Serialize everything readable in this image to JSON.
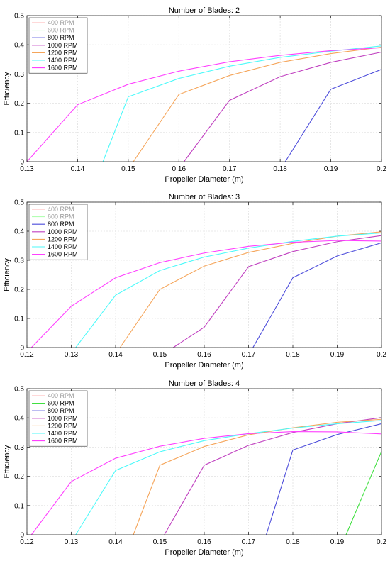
{
  "chart_data": [
    {
      "type": "line",
      "title": "Number of Blades: 2",
      "xlabel": "Propeller Diameter (m)",
      "ylabel": "Efficiency",
      "xlim": [
        0.13,
        0.2
      ],
      "ylim": [
        0,
        0.5
      ],
      "xticks": [
        "0.13",
        "0.14",
        "0.15",
        "0.16",
        "0.17",
        "0.18",
        "0.19",
        "0.2"
      ],
      "yticks": [
        "0",
        "0.1",
        "0.2",
        "0.3",
        "0.4",
        "0.5"
      ],
      "grid": true,
      "legend_position": "top-left",
      "series": [
        {
          "name": "400 RPM",
          "color": "#ffb3b3",
          "dim": true,
          "points": []
        },
        {
          "name": "600 RPM",
          "color": "#b3ffb3",
          "dim": true,
          "points": []
        },
        {
          "name": "800 RPM",
          "color": "#4d4ddb",
          "points": [
            [
              0.181,
              0
            ],
            [
              0.19,
              0.248
            ],
            [
              0.2,
              0.316
            ]
          ]
        },
        {
          "name": "1000 RPM",
          "color": "#c040c0",
          "points": [
            [
              0.161,
              0
            ],
            [
              0.17,
              0.21
            ],
            [
              0.18,
              0.291
            ],
            [
              0.19,
              0.34
            ],
            [
              0.2,
              0.375
            ]
          ]
        },
        {
          "name": "1200 RPM",
          "color": "#f5a55a",
          "points": [
            [
              0.151,
              0
            ],
            [
              0.16,
              0.23
            ],
            [
              0.17,
              0.295
            ],
            [
              0.18,
              0.34
            ],
            [
              0.19,
              0.37
            ],
            [
              0.2,
              0.392
            ]
          ]
        },
        {
          "name": "1400 RPM",
          "color": "#4dfafa",
          "points": [
            [
              0.145,
              0
            ],
            [
              0.15,
              0.222
            ],
            [
              0.16,
              0.285
            ],
            [
              0.17,
              0.327
            ],
            [
              0.18,
              0.357
            ],
            [
              0.19,
              0.378
            ],
            [
              0.2,
              0.396
            ]
          ]
        },
        {
          "name": "1600 RPM",
          "color": "#ff40ff",
          "points": [
            [
              0.13,
              0
            ],
            [
              0.14,
              0.195
            ],
            [
              0.15,
              0.265
            ],
            [
              0.16,
              0.31
            ],
            [
              0.17,
              0.342
            ],
            [
              0.18,
              0.364
            ],
            [
              0.19,
              0.38
            ],
            [
              0.2,
              0.39
            ]
          ]
        }
      ]
    },
    {
      "type": "line",
      "title": "Number of Blades: 3",
      "xlabel": "Propeller Diameter (m)",
      "ylabel": "Efficiency",
      "xlim": [
        0.12,
        0.2
      ],
      "ylim": [
        0,
        0.5
      ],
      "xticks": [
        "0.12",
        "0.13",
        "0.14",
        "0.15",
        "0.16",
        "0.17",
        "0.18",
        "0.19",
        "0.2"
      ],
      "yticks": [
        "0",
        "0.1",
        "0.2",
        "0.3",
        "0.4",
        "0.5"
      ],
      "grid": true,
      "legend_position": "top-left",
      "series": [
        {
          "name": "400 RPM",
          "color": "#ffb3b3",
          "dim": true,
          "points": []
        },
        {
          "name": "600 RPM",
          "color": "#b3ffb3",
          "dim": true,
          "points": []
        },
        {
          "name": "800 RPM",
          "color": "#4d4ddb",
          "points": [
            [
              0.171,
              0
            ],
            [
              0.18,
              0.24
            ],
            [
              0.19,
              0.315
            ],
            [
              0.2,
              0.36
            ]
          ]
        },
        {
          "name": "1000 RPM",
          "color": "#c040c0",
          "points": [
            [
              0.153,
              0
            ],
            [
              0.16,
              0.07
            ],
            [
              0.17,
              0.278
            ],
            [
              0.18,
              0.33
            ],
            [
              0.19,
              0.364
            ],
            [
              0.2,
              0.385
            ]
          ]
        },
        {
          "name": "1200 RPM",
          "color": "#f5a55a",
          "points": [
            [
              0.141,
              0
            ],
            [
              0.15,
              0.2
            ],
            [
              0.16,
              0.28
            ],
            [
              0.17,
              0.327
            ],
            [
              0.18,
              0.358
            ],
            [
              0.19,
              0.383
            ],
            [
              0.2,
              0.398
            ]
          ]
        },
        {
          "name": "1400 RPM",
          "color": "#4dfafa",
          "points": [
            [
              0.131,
              0
            ],
            [
              0.14,
              0.18
            ],
            [
              0.15,
              0.265
            ],
            [
              0.16,
              0.311
            ],
            [
              0.17,
              0.342
            ],
            [
              0.18,
              0.365
            ],
            [
              0.19,
              0.383
            ],
            [
              0.2,
              0.394
            ]
          ]
        },
        {
          "name": "1600 RPM",
          "color": "#ff40ff",
          "points": [
            [
              0.121,
              0
            ],
            [
              0.13,
              0.142
            ],
            [
              0.14,
              0.24
            ],
            [
              0.15,
              0.292
            ],
            [
              0.16,
              0.325
            ],
            [
              0.17,
              0.348
            ],
            [
              0.18,
              0.362
            ],
            [
              0.19,
              0.368
            ],
            [
              0.2,
              0.366
            ]
          ]
        }
      ]
    },
    {
      "type": "line",
      "title": "Number of Blades: 4",
      "xlabel": "Propeller Diameter (m)",
      "ylabel": "Efficiency",
      "xlim": [
        0.12,
        0.2
      ],
      "ylim": [
        0,
        0.5
      ],
      "xticks": [
        "0.12",
        "0.13",
        "0.14",
        "0.15",
        "0.16",
        "0.17",
        "0.18",
        "0.19",
        "0.2"
      ],
      "yticks": [
        "0",
        "0.1",
        "0.2",
        "0.3",
        "0.4",
        "0.5"
      ],
      "grid": true,
      "legend_position": "top-left",
      "series": [
        {
          "name": "400 RPM",
          "color": "#ffb3b3",
          "dim": true,
          "points": []
        },
        {
          "name": "600 RPM",
          "color": "#40e040",
          "points": [
            [
              0.192,
              0
            ],
            [
              0.2,
              0.285
            ]
          ]
        },
        {
          "name": "800 RPM",
          "color": "#4d4ddb",
          "points": [
            [
              0.174,
              0
            ],
            [
              0.18,
              0.29
            ],
            [
              0.19,
              0.343
            ],
            [
              0.2,
              0.38
            ]
          ]
        },
        {
          "name": "1000 RPM",
          "color": "#c040c0",
          "points": [
            [
              0.151,
              0
            ],
            [
              0.16,
              0.238
            ],
            [
              0.17,
              0.306
            ],
            [
              0.18,
              0.35
            ],
            [
              0.19,
              0.38
            ],
            [
              0.2,
              0.401
            ]
          ]
        },
        {
          "name": "1200 RPM",
          "color": "#f5a55a",
          "points": [
            [
              0.144,
              0
            ],
            [
              0.15,
              0.238
            ],
            [
              0.16,
              0.302
            ],
            [
              0.17,
              0.342
            ],
            [
              0.18,
              0.366
            ],
            [
              0.19,
              0.385
            ],
            [
              0.2,
              0.395
            ]
          ]
        },
        {
          "name": "1400 RPM",
          "color": "#4dfafa",
          "points": [
            [
              0.131,
              0
            ],
            [
              0.14,
              0.22
            ],
            [
              0.15,
              0.284
            ],
            [
              0.16,
              0.322
            ],
            [
              0.17,
              0.346
            ],
            [
              0.18,
              0.365
            ],
            [
              0.19,
              0.38
            ],
            [
              0.2,
              0.391
            ]
          ]
        },
        {
          "name": "1600 RPM",
          "color": "#ff40ff",
          "points": [
            [
              0.121,
              0
            ],
            [
              0.13,
              0.182
            ],
            [
              0.14,
              0.262
            ],
            [
              0.15,
              0.303
            ],
            [
              0.16,
              0.33
            ],
            [
              0.17,
              0.346
            ],
            [
              0.18,
              0.353
            ],
            [
              0.19,
              0.352
            ],
            [
              0.2,
              0.345
            ]
          ]
        }
      ]
    }
  ]
}
